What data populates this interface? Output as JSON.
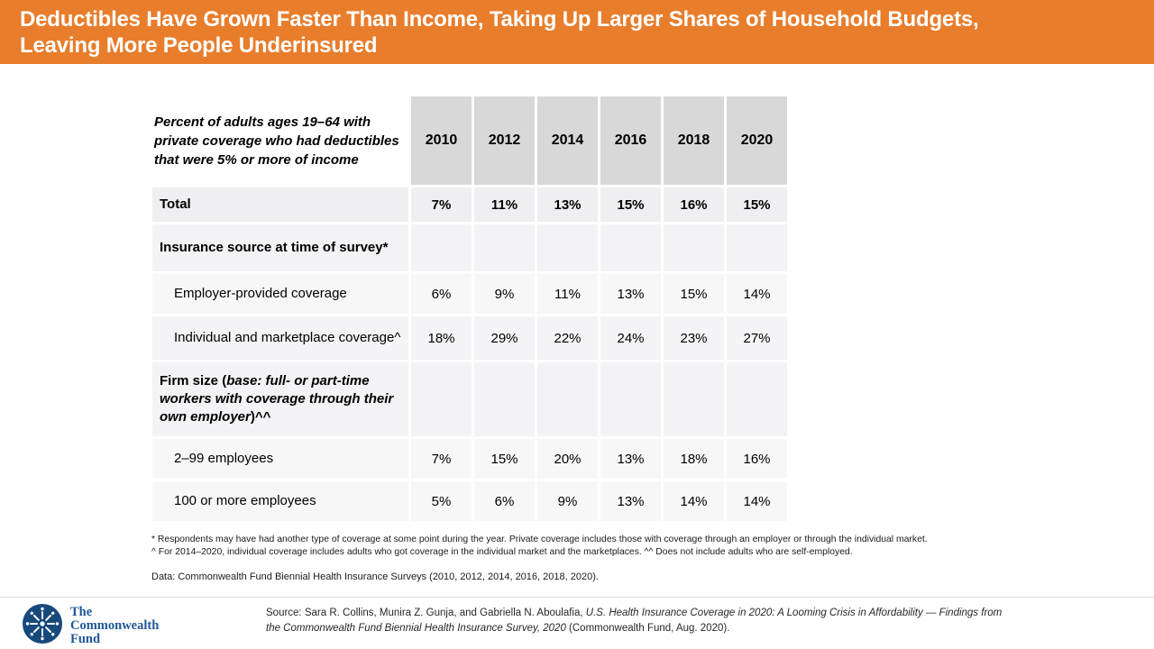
{
  "banner": {
    "title_line1": "Deductibles Have Grown Faster Than Income, Taking Up Larger Shares of Household Budgets,",
    "title_line2": "Leaving More People Underinsured"
  },
  "chart_data": {
    "type": "table",
    "title": "Percent of adults ages 19–64 with private coverage who had deductibles that were 5% or more of income",
    "categories": [
      "2010",
      "2012",
      "2014",
      "2016",
      "2018",
      "2020"
    ],
    "rows": [
      {
        "label": "Total",
        "bold": true,
        "indent": false,
        "value_bold": true,
        "values": [
          "7%",
          "11%",
          "13%",
          "15%",
          "16%",
          "15%"
        ]
      },
      {
        "label": "Insurance source at time of survey*",
        "bold": true,
        "indent": false,
        "value_bold": false,
        "values": [
          "",
          "",
          "",
          "",
          "",
          ""
        ]
      },
      {
        "label": "Employer-provided coverage",
        "bold": false,
        "indent": true,
        "value_bold": false,
        "values": [
          "6%",
          "9%",
          "11%",
          "13%",
          "15%",
          "14%"
        ]
      },
      {
        "label": "Individual and marketplace coverage^",
        "bold": false,
        "indent": true,
        "value_bold": false,
        "values": [
          "18%",
          "29%",
          "22%",
          "24%",
          "23%",
          "27%"
        ]
      },
      {
        "label_prefix": "Firm size (",
        "label_italic": "base: full- or part-time workers with coverage through their own employer",
        "label_suffix": ")^^",
        "bold": true,
        "indent": false,
        "value_bold": false,
        "values": [
          "",
          "",
          "",
          "",
          "",
          ""
        ]
      },
      {
        "label": "2–99 employees",
        "bold": false,
        "indent": true,
        "value_bold": false,
        "values": [
          "7%",
          "15%",
          "20%",
          "13%",
          "18%",
          "16%"
        ]
      },
      {
        "label": "100 or more employees",
        "bold": false,
        "indent": true,
        "value_bold": false,
        "values": [
          "5%",
          "6%",
          "9%",
          "13%",
          "14%",
          "14%"
        ]
      }
    ]
  },
  "footnotes": {
    "line1": "* Respondents may have had another type of coverage at some point during the year. Private coverage includes those with coverage through an employer or through the individual market.",
    "line2": "^ For 2014–2020, individual coverage includes adults who got coverage in the individual market and the marketplaces. ^^ Does not include adults who are self-employed.",
    "data_line": "Data: Commonwealth Fund Biennial Health Insurance Surveys (2010, 2012, 2014, 2016, 2018, 2020)."
  },
  "footer": {
    "logo_line1": "The",
    "logo_line2": "Commonwealth",
    "logo_line3": "Fund",
    "source_prefix": "Source: Sara R. Collins, Munira Z. Gunja, and Gabriella N. Aboulafia, ",
    "source_italic": "U.S. Health Insurance Coverage in 2020: A Looming Crisis in Affordability — Findings from the Commonwealth Fund Biennial Health Insurance Survey, 2020 ",
    "source_suffix": "(Commonwealth Fund, Aug. 2020)."
  },
  "colors": {
    "banner_orange": "#E87D2C",
    "year_header_gray": "#D9D8D9",
    "total_row_gray": "#EFEEF0",
    "logo_navy": "#17497B",
    "logo_text_blue": "#1F5795",
    "footer_divider": "#D8D8D8"
  }
}
